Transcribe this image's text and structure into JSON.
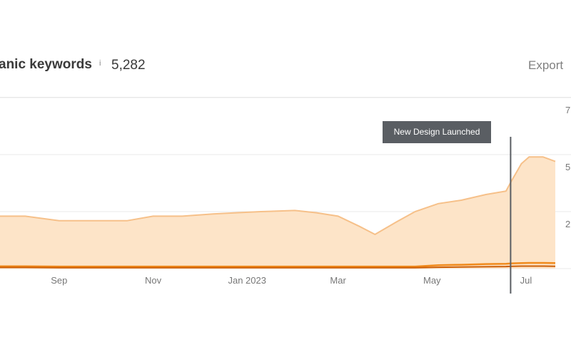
{
  "header": {
    "title": "anic keywords",
    "info_icon": "i",
    "count": "5,282",
    "export_label": "Export"
  },
  "colors": {
    "main_line": "#f6c089",
    "main_fill": "#fde4c8",
    "series2": "#f08a1c",
    "series3": "#cc5f08",
    "grid": "#e9e9e9",
    "annotation_bg": "#5a5e63"
  },
  "chart_data": {
    "type": "area",
    "title": "anic keywords",
    "x_tick_labels": [
      "Sep",
      "Nov",
      "Jan 2023",
      "Mar",
      "May",
      "Jul"
    ],
    "y_tick_labels_partial": [
      "7",
      "5",
      "2"
    ],
    "x": [
      "2022-07-20",
      "2022-08-10",
      "2022-09-01",
      "2022-09-25",
      "2022-10-15",
      "2022-11-01",
      "2022-11-20",
      "2022-12-10",
      "2022-12-25",
      "2023-01-10",
      "2023-02-01",
      "2023-02-15",
      "2023-03-01",
      "2023-03-15",
      "2023-03-25",
      "2023-04-08",
      "2023-04-20",
      "2023-05-05",
      "2023-05-20",
      "2023-06-05",
      "2023-06-18",
      "2023-06-22",
      "2023-06-28",
      "2023-07-03",
      "2023-07-12",
      "2023-07-20"
    ],
    "series": [
      {
        "values": [
          2300,
          2300,
          2100,
          2100,
          2100,
          2300,
          2300,
          2400,
          2450,
          2500,
          2550,
          2450,
          2300,
          1850,
          1500,
          2050,
          2500,
          2850,
          3000,
          3250,
          3400,
          3900,
          4600,
          4900,
          4900,
          4700
        ]
      },
      {
        "values": [
          100,
          100,
          90,
          90,
          90,
          90,
          90,
          90,
          90,
          90,
          90,
          90,
          90,
          90,
          90,
          90,
          90,
          150,
          170,
          200,
          210,
          230,
          240,
          250,
          250,
          240
        ]
      },
      {
        "values": [
          50,
          50,
          40,
          40,
          40,
          40,
          40,
          40,
          40,
          40,
          40,
          40,
          40,
          40,
          40,
          40,
          40,
          60,
          70,
          80,
          90,
          100,
          110,
          110,
          110,
          100
        ]
      }
    ],
    "ylim": [
      0,
      7500
    ],
    "grid": "horizontal",
    "annotations": [
      {
        "x": "2023-06-21",
        "label": "New Design Launched"
      }
    ]
  }
}
